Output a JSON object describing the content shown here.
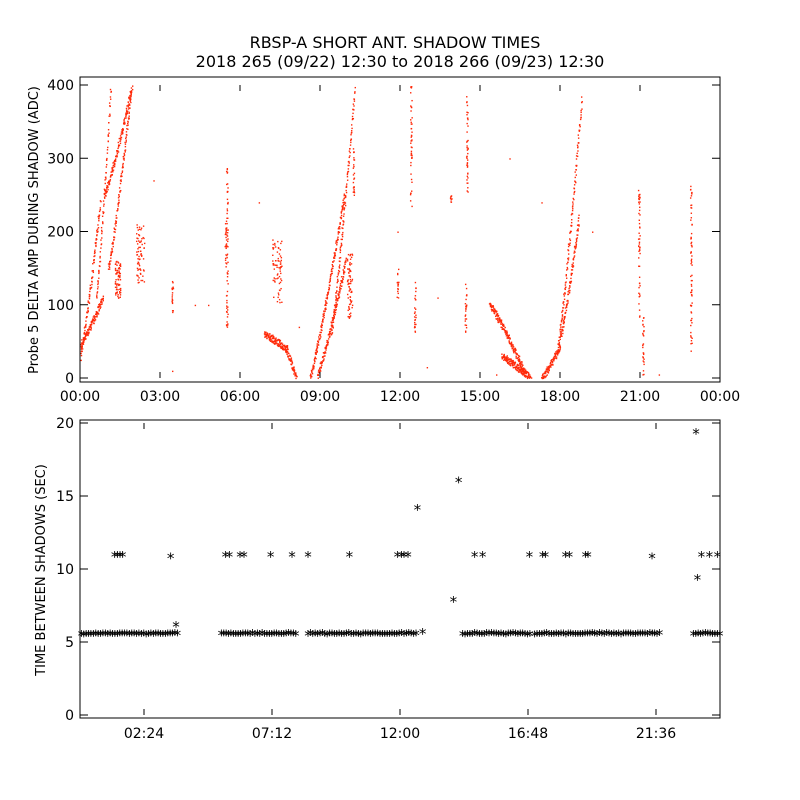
{
  "figure": {
    "title_line1": "RBSP-A SHORT ANT. SHADOW TIMES",
    "title_line2": "2018 265 (09/22) 12:30 to 2018 266 (09/23) 12:30"
  },
  "colors": {
    "top_series": "#ff2a0a",
    "bottom_series": "#000000",
    "axes": "#000000",
    "background": "#ffffff"
  },
  "chart_data": [
    {
      "type": "scatter",
      "ylabel": "Probe 5 DELTA AMP DURING SHADOW (ADC)",
      "xlabel": "",
      "x_unit": "hours",
      "xlim": [
        0,
        24
      ],
      "ylim": [
        0,
        400
      ],
      "x_ticks": [
        0,
        3,
        6,
        9,
        12,
        15,
        18,
        21,
        24
      ],
      "x_tick_labels": [
        "00:00",
        "03:00",
        "06:00",
        "09:00",
        "12:00",
        "15:00",
        "18:00",
        "21:00",
        "00:00"
      ],
      "y_ticks": [
        0,
        100,
        200,
        300,
        400
      ],
      "y_tick_labels": [
        "0",
        "100",
        "200",
        "300",
        "400"
      ],
      "grid": false,
      "series": [
        {
          "marker": "dot",
          "color": "#ff2a0a",
          "arcs": [
            {
              "x0": 0.0,
              "x1": 0.75,
              "y0": 30,
              "y1": 240
            },
            {
              "x0": 0.0,
              "x1": 0.85,
              "y0": 45,
              "y1": 110
            },
            {
              "x0": 0.6,
              "x1": 1.15,
              "y0": 110,
              "y1": 400
            },
            {
              "x0": 0.9,
              "x1": 1.95,
              "y0": 250,
              "y1": 400
            },
            {
              "x0": 1.05,
              "x1": 1.9,
              "y0": 150,
              "y1": 390
            },
            {
              "x0": 6.9,
              "x1": 7.75,
              "y0": 60,
              "y1": 40
            },
            {
              "x0": 7.7,
              "x1": 8.1,
              "y0": 40,
              "y1": 0
            },
            {
              "x0": 8.6,
              "x1": 9.9,
              "y0": 0,
              "y1": 250
            },
            {
              "x0": 8.9,
              "x1": 9.95,
              "y0": 5,
              "y1": 160
            },
            {
              "x0": 9.4,
              "x1": 10.3,
              "y0": 60,
              "y1": 400
            },
            {
              "x0": 15.35,
              "x1": 16.7,
              "y0": 100,
              "y1": 5
            },
            {
              "x0": 15.8,
              "x1": 16.9,
              "y0": 30,
              "y1": 0
            },
            {
              "x0": 17.3,
              "x1": 18.0,
              "y0": 0,
              "y1": 45
            },
            {
              "x0": 17.9,
              "x1": 18.8,
              "y0": 40,
              "y1": 380
            },
            {
              "x0": 18.0,
              "x1": 18.7,
              "y0": 55,
              "y1": 220
            }
          ],
          "clusters": [
            {
              "x": [
                2.1,
                2.4
              ],
              "y": [
                130,
                210
              ]
            },
            {
              "x": [
                7.2,
                7.55
              ],
              "y": [
                100,
                190
              ]
            },
            {
              "x": [
                10.0,
                10.2
              ],
              "y": [
                80,
                170
              ]
            },
            {
              "x": [
                1.3,
                1.5
              ],
              "y": [
                110,
                160
              ]
            }
          ],
          "columns": [
            {
              "x": 3.45,
              "y": [
                85,
                135
              ]
            },
            {
              "x": 5.5,
              "y": [
                70,
                290
              ]
            },
            {
              "x": 5.45,
              "y": [
                150,
                220
              ]
            },
            {
              "x": 10.25,
              "y": [
                250,
                320
              ]
            },
            {
              "x": 11.9,
              "y": [
                110,
                150
              ]
            },
            {
              "x": 12.4,
              "y": [
                235,
                400
              ]
            },
            {
              "x": 12.55,
              "y": [
                60,
                135
              ]
            },
            {
              "x": 13.9,
              "y": [
                240,
                250
              ]
            },
            {
              "x": 14.45,
              "y": [
                60,
                130
              ]
            },
            {
              "x": 14.5,
              "y": [
                250,
                390
              ]
            },
            {
              "x": 20.95,
              "y": [
                80,
                260
              ]
            },
            {
              "x": 21.1,
              "y": [
                0,
                85
              ]
            },
            {
              "x": 22.9,
              "y": [
                20,
                265
              ]
            }
          ],
          "scatter": [
            [
              2.75,
              270
            ],
            [
              3.45,
              10
            ],
            [
              4.3,
              100
            ],
            [
              4.8,
              100
            ],
            [
              6.7,
              240
            ],
            [
              8.2,
              70
            ],
            [
              11.9,
              200
            ],
            [
              13.0,
              15
            ],
            [
              13.4,
              110
            ],
            [
              15.6,
              5
            ],
            [
              16.1,
              300
            ],
            [
              21.7,
              5
            ],
            [
              17.3,
              240
            ],
            [
              19.2,
              200
            ]
          ]
        }
      ]
    },
    {
      "type": "scatter",
      "ylabel": "TIME BETWEEN SHADOWS (SEC)",
      "xlabel": "",
      "x_unit": "hours",
      "xlim": [
        0,
        24
      ],
      "ylim": [
        0,
        20
      ],
      "x_ticks": [
        2.4,
        7.2,
        12.0,
        16.8,
        21.6
      ],
      "x_tick_labels": [
        "02:24",
        "07:12",
        "12:00",
        "16:48",
        "21:36"
      ],
      "y_ticks": [
        0,
        5,
        10,
        15,
        20
      ],
      "y_tick_labels": [
        "0",
        "5",
        "10",
        "15",
        "20"
      ],
      "grid": false,
      "series": [
        {
          "marker": "*",
          "color": "#000000",
          "bands": [
            {
              "x0": 0.05,
              "x1": 3.65,
              "y": 5.5
            },
            {
              "x0": 5.3,
              "x1": 8.15,
              "y": 5.5
            },
            {
              "x0": 8.55,
              "x1": 12.6,
              "y": 5.5
            },
            {
              "x0": 14.35,
              "x1": 16.95,
              "y": 5.5
            },
            {
              "x0": 17.05,
              "x1": 21.75,
              "y": 5.5
            },
            {
              "x0": 23.0,
              "x1": 24.0,
              "y": 5.5
            }
          ],
          "points": [
            [
              1.3,
              10.9
            ],
            [
              1.4,
              10.9
            ],
            [
              1.5,
              10.9
            ],
            [
              1.6,
              10.9
            ],
            [
              3.4,
              10.8
            ],
            [
              3.6,
              6.1
            ],
            [
              5.45,
              10.9
            ],
            [
              5.6,
              10.9
            ],
            [
              6.0,
              10.9
            ],
            [
              6.15,
              10.9
            ],
            [
              7.15,
              10.9
            ],
            [
              7.95,
              10.9
            ],
            [
              8.55,
              10.9
            ],
            [
              10.1,
              10.9
            ],
            [
              11.9,
              10.9
            ],
            [
              12.05,
              10.9
            ],
            [
              12.15,
              10.9
            ],
            [
              12.3,
              10.9
            ],
            [
              12.65,
              14.1
            ],
            [
              12.85,
              5.6
            ],
            [
              14.0,
              7.8
            ],
            [
              14.2,
              16.0
            ],
            [
              14.8,
              10.9
            ],
            [
              15.1,
              10.9
            ],
            [
              16.85,
              10.9
            ],
            [
              17.35,
              10.9
            ],
            [
              17.45,
              10.9
            ],
            [
              18.2,
              10.9
            ],
            [
              18.35,
              10.9
            ],
            [
              18.95,
              10.9
            ],
            [
              19.05,
              10.9
            ],
            [
              21.45,
              10.8
            ],
            [
              23.1,
              19.3
            ],
            [
              23.15,
              9.3
            ],
            [
              23.3,
              10.9
            ],
            [
              23.6,
              10.9
            ],
            [
              23.9,
              10.9
            ]
          ]
        }
      ]
    }
  ]
}
